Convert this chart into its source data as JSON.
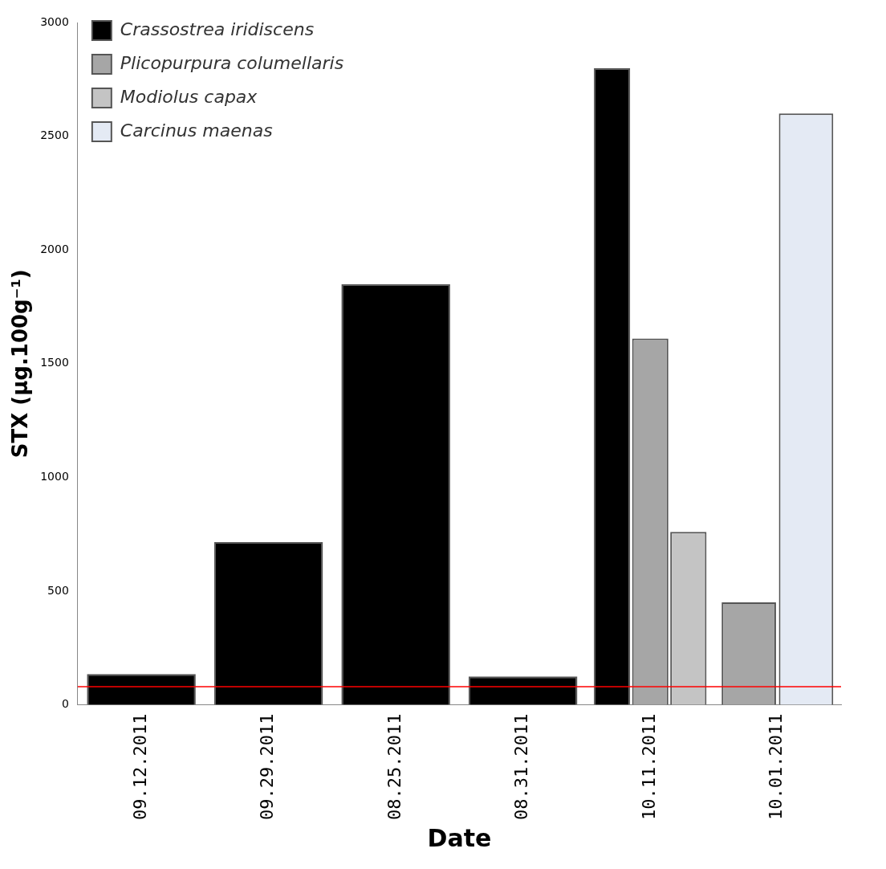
{
  "chart_data": {
    "type": "bar",
    "xlabel": "Date",
    "ylabel": "STX (µg.100g⁻¹)",
    "categories": [
      "09.12.2011",
      "09.29.2011",
      "08.25.2011",
      "08.31.2011",
      "10.11.2011",
      "10.01.2011"
    ],
    "series": [
      {
        "name": "Crassostrea iridiscens",
        "color": "#000000",
        "values": [
          135,
          715,
          1850,
          125,
          2800,
          null
        ]
      },
      {
        "name": "Plicopurpura columellaris",
        "color": "#a6a6a6",
        "values": [
          null,
          null,
          null,
          null,
          1610,
          450
        ]
      },
      {
        "name": "Modiolus capax",
        "color": "#c4c4c4",
        "values": [
          null,
          null,
          null,
          null,
          760,
          null
        ]
      },
      {
        "name": "Carcinus maenas",
        "color": "#e4eaf4",
        "values": [
          null,
          null,
          null,
          null,
          null,
          2600
        ]
      }
    ],
    "ylim": [
      0,
      3000
    ],
    "yticks": [
      0,
      500,
      1000,
      1500,
      2000,
      2500,
      3000
    ],
    "ref_lines": [
      {
        "axis": "y",
        "value": 80,
        "color": "#ff0000"
      }
    ],
    "grid": false,
    "legend": "top left"
  }
}
